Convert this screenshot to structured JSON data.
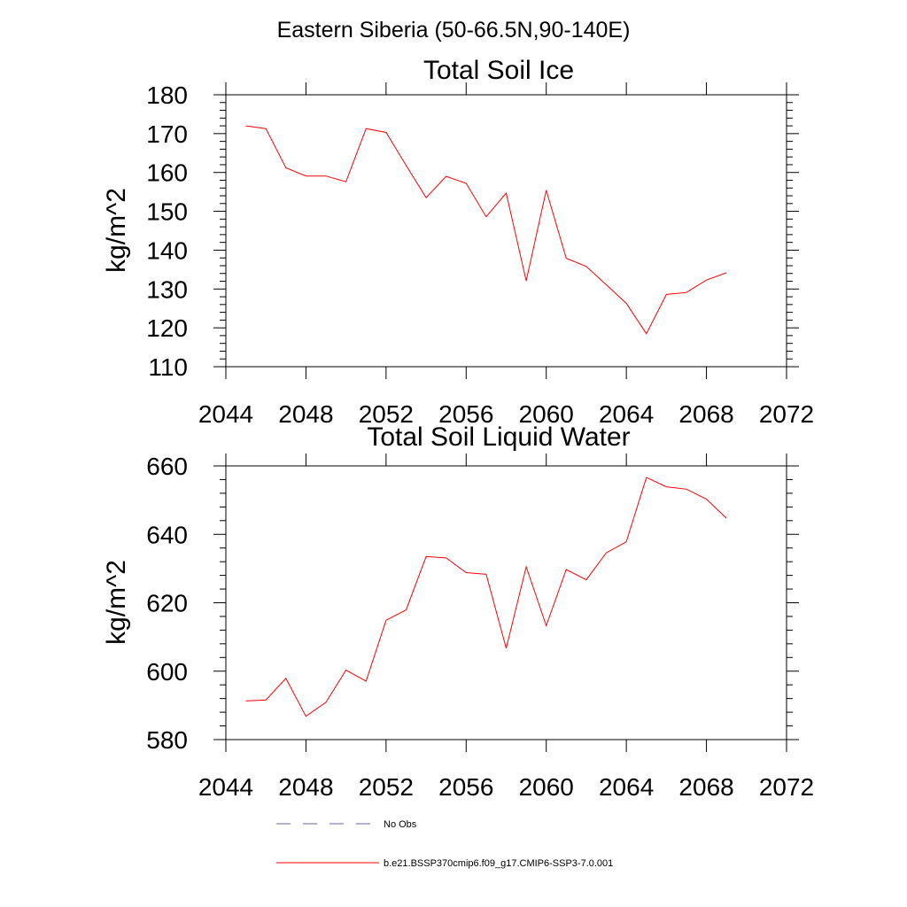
{
  "figure": {
    "suptitle": "Eastern Siberia (50-66.5N,90-140E)"
  },
  "chart_data": [
    {
      "type": "line",
      "title": "Total Soil Ice",
      "xlabel": "",
      "ylabel": "kg/m^2",
      "xlim": [
        2044,
        2072
      ],
      "ylim": [
        110,
        180
      ],
      "xticks": [
        2044,
        2048,
        2052,
        2056,
        2060,
        2064,
        2068,
        2072
      ],
      "yticks": [
        110,
        120,
        130,
        140,
        150,
        160,
        170,
        180
      ],
      "grid": false,
      "series": [
        {
          "name": "b.e21.BSSP370cmip6.f09_g17.CMIP6-SSP3-7.0.001",
          "color": "#ff0000",
          "x": [
            2045,
            2046,
            2047,
            2048,
            2049,
            2050,
            2051,
            2052,
            2053,
            2054,
            2055,
            2056,
            2057,
            2058,
            2059,
            2060,
            2061,
            2062,
            2063,
            2064,
            2065,
            2066,
            2067,
            2068,
            2069
          ],
          "y": [
            172.0,
            171.3,
            161.2,
            159.1,
            159.1,
            157.6,
            171.3,
            170.3,
            161.8,
            153.5,
            159.0,
            157.2,
            148.6,
            154.7,
            132.1,
            155.4,
            137.9,
            135.8,
            131.1,
            126.3,
            118.5,
            128.6,
            129.1,
            132.3,
            134.2
          ]
        }
      ]
    },
    {
      "type": "line",
      "title": "Total Soil Liquid Water",
      "xlabel": "",
      "ylabel": "kg/m^2",
      "xlim": [
        2044,
        2072
      ],
      "ylim": [
        580,
        660
      ],
      "xticks": [
        2044,
        2048,
        2052,
        2056,
        2060,
        2064,
        2068,
        2072
      ],
      "yticks": [
        580,
        600,
        620,
        640,
        660
      ],
      "grid": false,
      "series": [
        {
          "name": "b.e21.BSSP370cmip6.f09_g17.CMIP6-SSP3-7.0.001",
          "color": "#ff0000",
          "x": [
            2045,
            2046,
            2047,
            2048,
            2049,
            2050,
            2051,
            2052,
            2053,
            2054,
            2055,
            2056,
            2057,
            2058,
            2059,
            2060,
            2061,
            2062,
            2063,
            2064,
            2065,
            2066,
            2067,
            2068,
            2069
          ],
          "y": [
            591.3,
            591.6,
            597.9,
            586.8,
            590.9,
            600.3,
            597.1,
            614.9,
            617.9,
            633.5,
            633.1,
            628.8,
            628.3,
            606.7,
            630.5,
            613.3,
            629.7,
            626.7,
            634.6,
            637.8,
            656.6,
            653.9,
            653.2,
            650.3,
            644.7
          ]
        }
      ]
    }
  ],
  "legend": {
    "placement": "bottom-center",
    "entries": [
      {
        "label": "No Obs",
        "color": "#6666aa",
        "dash": "dashed"
      },
      {
        "label": "b.e21.BSSP370cmip6.f09_g17.CMIP6-SSP3-7.0.001",
        "color": "#ff0000",
        "dash": "solid"
      }
    ]
  }
}
